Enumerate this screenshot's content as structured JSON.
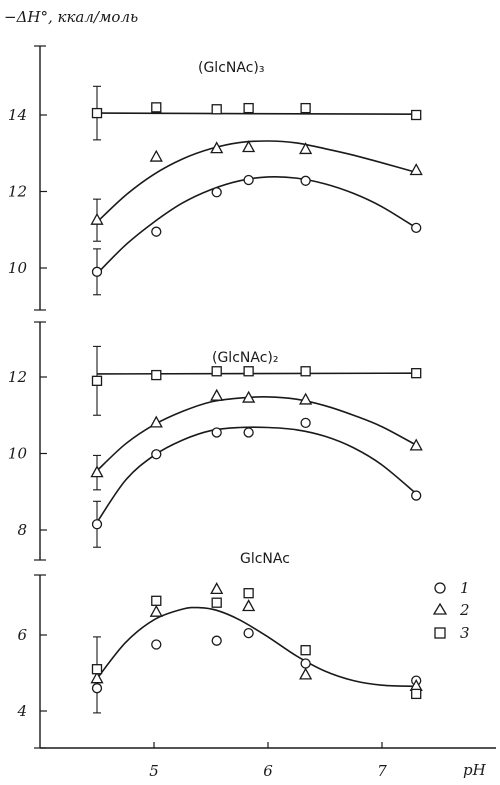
{
  "chart_data": [
    {
      "type": "scatter",
      "title": "(GlcNAc)₃",
      "ylabel": "−ΔH°, ккал/моль",
      "xlabel": "pH",
      "xlim": [
        4.0,
        8.0
      ],
      "ylim": [
        9.0,
        16.0
      ],
      "yticks": [
        10,
        12,
        14
      ],
      "series": [
        {
          "name": "1",
          "marker": "circle",
          "x": [
            4.5,
            5.02,
            5.55,
            5.83,
            6.33,
            7.3
          ],
          "y": [
            9.9,
            10.95,
            11.98,
            12.3,
            12.28,
            11.05
          ],
          "fit_x": [
            4.5,
            4.75,
            5.0,
            5.25,
            5.5,
            5.75,
            6.0,
            6.25,
            6.5,
            6.75,
            7.0,
            7.3
          ],
          "fit_y": [
            9.85,
            10.6,
            11.2,
            11.7,
            12.05,
            12.28,
            12.38,
            12.35,
            12.2,
            11.95,
            11.6,
            11.05
          ]
        },
        {
          "name": "2",
          "marker": "triangle",
          "x": [
            4.5,
            5.02,
            5.55,
            5.83,
            6.33,
            7.3
          ],
          "y": [
            11.25,
            12.9,
            13.12,
            13.15,
            13.1,
            12.55
          ],
          "fit_x": [
            4.5,
            4.75,
            5.0,
            5.25,
            5.5,
            5.75,
            6.0,
            6.25,
            6.5,
            6.75,
            7.0,
            7.3
          ],
          "fit_y": [
            11.2,
            11.9,
            12.45,
            12.85,
            13.12,
            13.28,
            13.32,
            13.27,
            13.12,
            12.95,
            12.75,
            12.5
          ]
        },
        {
          "name": "3",
          "marker": "square",
          "x": [
            4.5,
            5.02,
            5.55,
            5.83,
            6.33,
            7.3
          ],
          "y": [
            14.05,
            14.2,
            14.15,
            14.18,
            14.18,
            14.0
          ],
          "fit_x": [
            4.5,
            7.3
          ],
          "fit_y": [
            14.05,
            14.02
          ]
        }
      ],
      "error_bars": [
        {
          "x": 4.5,
          "y": 9.9,
          "err": 0.6
        },
        {
          "x": 4.5,
          "y": 11.25,
          "err": 0.55
        },
        {
          "x": 4.5,
          "y": 14.05,
          "err": 0.7
        }
      ]
    },
    {
      "type": "scatter",
      "title": "(GlcNAc)₂",
      "ylabel": "",
      "xlabel": "pH",
      "xlim": [
        4.0,
        8.0
      ],
      "ylim": [
        7.0,
        13.5
      ],
      "yticks": [
        8,
        10,
        12
      ],
      "series": [
        {
          "name": "1",
          "marker": "circle",
          "x": [
            4.5,
            5.02,
            5.55,
            5.83,
            6.33,
            7.3
          ],
          "y": [
            8.15,
            9.98,
            10.55,
            10.55,
            10.8,
            8.9
          ],
          "fit_x": [
            4.5,
            4.75,
            5.0,
            5.25,
            5.5,
            5.75,
            6.0,
            6.25,
            6.5,
            6.75,
            7.0,
            7.3
          ],
          "fit_y": [
            8.2,
            9.3,
            9.95,
            10.35,
            10.6,
            10.68,
            10.68,
            10.62,
            10.45,
            10.15,
            9.7,
            8.95
          ]
        },
        {
          "name": "2",
          "marker": "triangle",
          "x": [
            4.5,
            5.02,
            5.55,
            5.83,
            6.33,
            7.3
          ],
          "y": [
            9.5,
            10.8,
            11.5,
            11.45,
            11.4,
            10.2
          ],
          "fit_x": [
            4.5,
            4.75,
            5.0,
            5.25,
            5.5,
            5.75,
            6.0,
            6.25,
            6.5,
            6.75,
            7.0,
            7.3
          ],
          "fit_y": [
            9.55,
            10.25,
            10.75,
            11.1,
            11.35,
            11.45,
            11.48,
            11.42,
            11.25,
            11.0,
            10.7,
            10.22
          ]
        },
        {
          "name": "3",
          "marker": "square",
          "x": [
            4.5,
            5.02,
            5.55,
            5.83,
            6.33,
            7.3
          ],
          "y": [
            11.9,
            12.05,
            12.15,
            12.15,
            12.15,
            12.1
          ],
          "fit_x": [
            4.5,
            7.3
          ],
          "fit_y": [
            12.08,
            12.1
          ]
        }
      ],
      "error_bars": [
        {
          "x": 4.5,
          "y": 8.15,
          "err": 0.6
        },
        {
          "x": 4.5,
          "y": 9.5,
          "err": 0.45
        },
        {
          "x": 4.5,
          "y": 11.9,
          "err": 0.9
        }
      ]
    },
    {
      "type": "scatter",
      "title": "GlcNAc",
      "ylabel": "",
      "xlabel": "pH",
      "xlim": [
        4.0,
        8.0
      ],
      "ylim": [
        3.0,
        8.0
      ],
      "yticks": [
        4,
        6
      ],
      "xticks": [
        5,
        6,
        7
      ],
      "series": [
        {
          "name": "1",
          "marker": "circle",
          "x": [
            4.5,
            5.02,
            5.55,
            5.83,
            6.33,
            7.3
          ],
          "y": [
            4.6,
            5.75,
            5.85,
            6.05,
            5.25,
            4.8
          ],
          "fit_x": [
            4.5,
            4.75,
            5.0,
            5.25,
            5.4,
            5.55,
            5.75,
            6.0,
            6.25,
            6.5,
            6.75,
            7.0,
            7.3
          ],
          "fit_y": [
            4.85,
            5.8,
            6.4,
            6.68,
            6.72,
            6.65,
            6.4,
            5.95,
            5.45,
            5.05,
            4.8,
            4.68,
            4.65
          ]
        },
        {
          "name": "2",
          "marker": "triangle",
          "x": [
            4.5,
            5.02,
            5.55,
            5.83,
            6.33,
            7.3
          ],
          "y": [
            4.85,
            6.6,
            7.2,
            6.75,
            4.95,
            4.65
          ],
          "fit_x": [],
          "fit_y": []
        },
        {
          "name": "3",
          "marker": "square",
          "x": [
            4.5,
            5.02,
            5.55,
            5.83,
            6.33,
            7.3
          ],
          "y": [
            5.1,
            6.9,
            6.85,
            7.1,
            5.6,
            4.45
          ],
          "fit_x": [],
          "fit_y": []
        }
      ],
      "error_bars": [
        {
          "x": 4.5,
          "y": 4.95,
          "err": 1.0
        }
      ]
    }
  ],
  "legend": {
    "placement": "right of bottom panel",
    "entries": [
      {
        "marker": "circle",
        "label": "1"
      },
      {
        "marker": "triangle",
        "label": "2"
      },
      {
        "marker": "square",
        "label": "3"
      }
    ]
  }
}
